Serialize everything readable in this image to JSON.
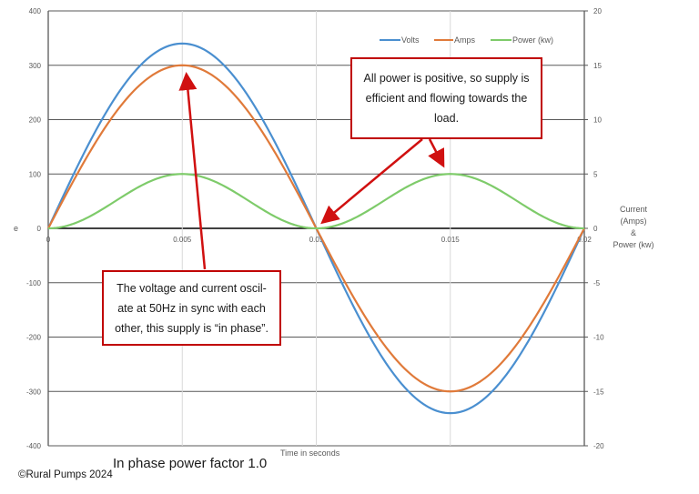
{
  "chart_data": {
    "type": "line",
    "title": "In phase power factor 1.0",
    "xlabel": "Time in seconds",
    "ylabel_left": "e",
    "ylabel_right": "Current (Amps) & Power (kw)",
    "xlim": [
      0,
      0.02
    ],
    "ylim_left": [
      -400,
      400
    ],
    "ylim_right": [
      -20,
      20
    ],
    "x_ticks": [
      "0",
      "0.005",
      "0.01",
      "0.015",
      "0.02"
    ],
    "y_ticks_left": [
      "400",
      "300",
      "200",
      "100",
      "0",
      "-100",
      "-200",
      "-300",
      "-400"
    ],
    "y_ticks_right": [
      "20",
      "15",
      "10",
      "5",
      "0",
      "-5",
      "-10",
      "-15",
      "-20"
    ],
    "grid": true,
    "legend_position": "top-right",
    "x": [
      0,
      0.0025,
      0.005,
      0.0075,
      0.01,
      0.0125,
      0.015,
      0.0175,
      0.02
    ],
    "series": [
      {
        "name": "Volts",
        "axis": "left",
        "color": "#4a8fd0",
        "amplitude": 340,
        "values": [
          0,
          240,
          340,
          240,
          0,
          -240,
          -340,
          -240,
          0
        ]
      },
      {
        "name": "Amps",
        "axis": "left",
        "color": "#e07a3a",
        "amplitude": 300,
        "amplitude_right_axis": 15,
        "values": [
          0,
          212,
          300,
          212,
          0,
          -212,
          -300,
          -212,
          0
        ]
      },
      {
        "name": "Power (kw)",
        "axis": "left",
        "color": "#7ecb6a",
        "amplitude": 100,
        "amplitude_right_axis": 5,
        "values": [
          0,
          50,
          100,
          50,
          0,
          50,
          100,
          50,
          0
        ]
      }
    ],
    "annotations": [
      "All power is positive, so supply is efficient and flowing towards the load.",
      "The voltage and current oscil-ate at 50Hz in sync with each other, this supply is “in phase”."
    ]
  },
  "legend": {
    "volts": "Volts",
    "amps": "Amps",
    "power": "Power (kw)"
  },
  "axes": {
    "left_title": "e",
    "right_title_line1": "Current",
    "right_title_line2": "(Amps)",
    "right_title_line3": "&",
    "right_title_line4": "Power (kw)",
    "x_title": "Time in seconds"
  },
  "callouts": {
    "top": "All power is positive, so supply is efficient and flowing towards the load.",
    "bottom": "The voltage and current oscil-ate at 50Hz in sync with each other, this supply is “in phase”."
  },
  "caption": "In phase power factor 1.0",
  "copyright": "©Rural Pumps 2024",
  "colors": {
    "volts": "#4a8fd0",
    "amps": "#e07a3a",
    "power": "#7ecb6a",
    "callout_border": "#c00000",
    "arrow": "#d01010"
  }
}
